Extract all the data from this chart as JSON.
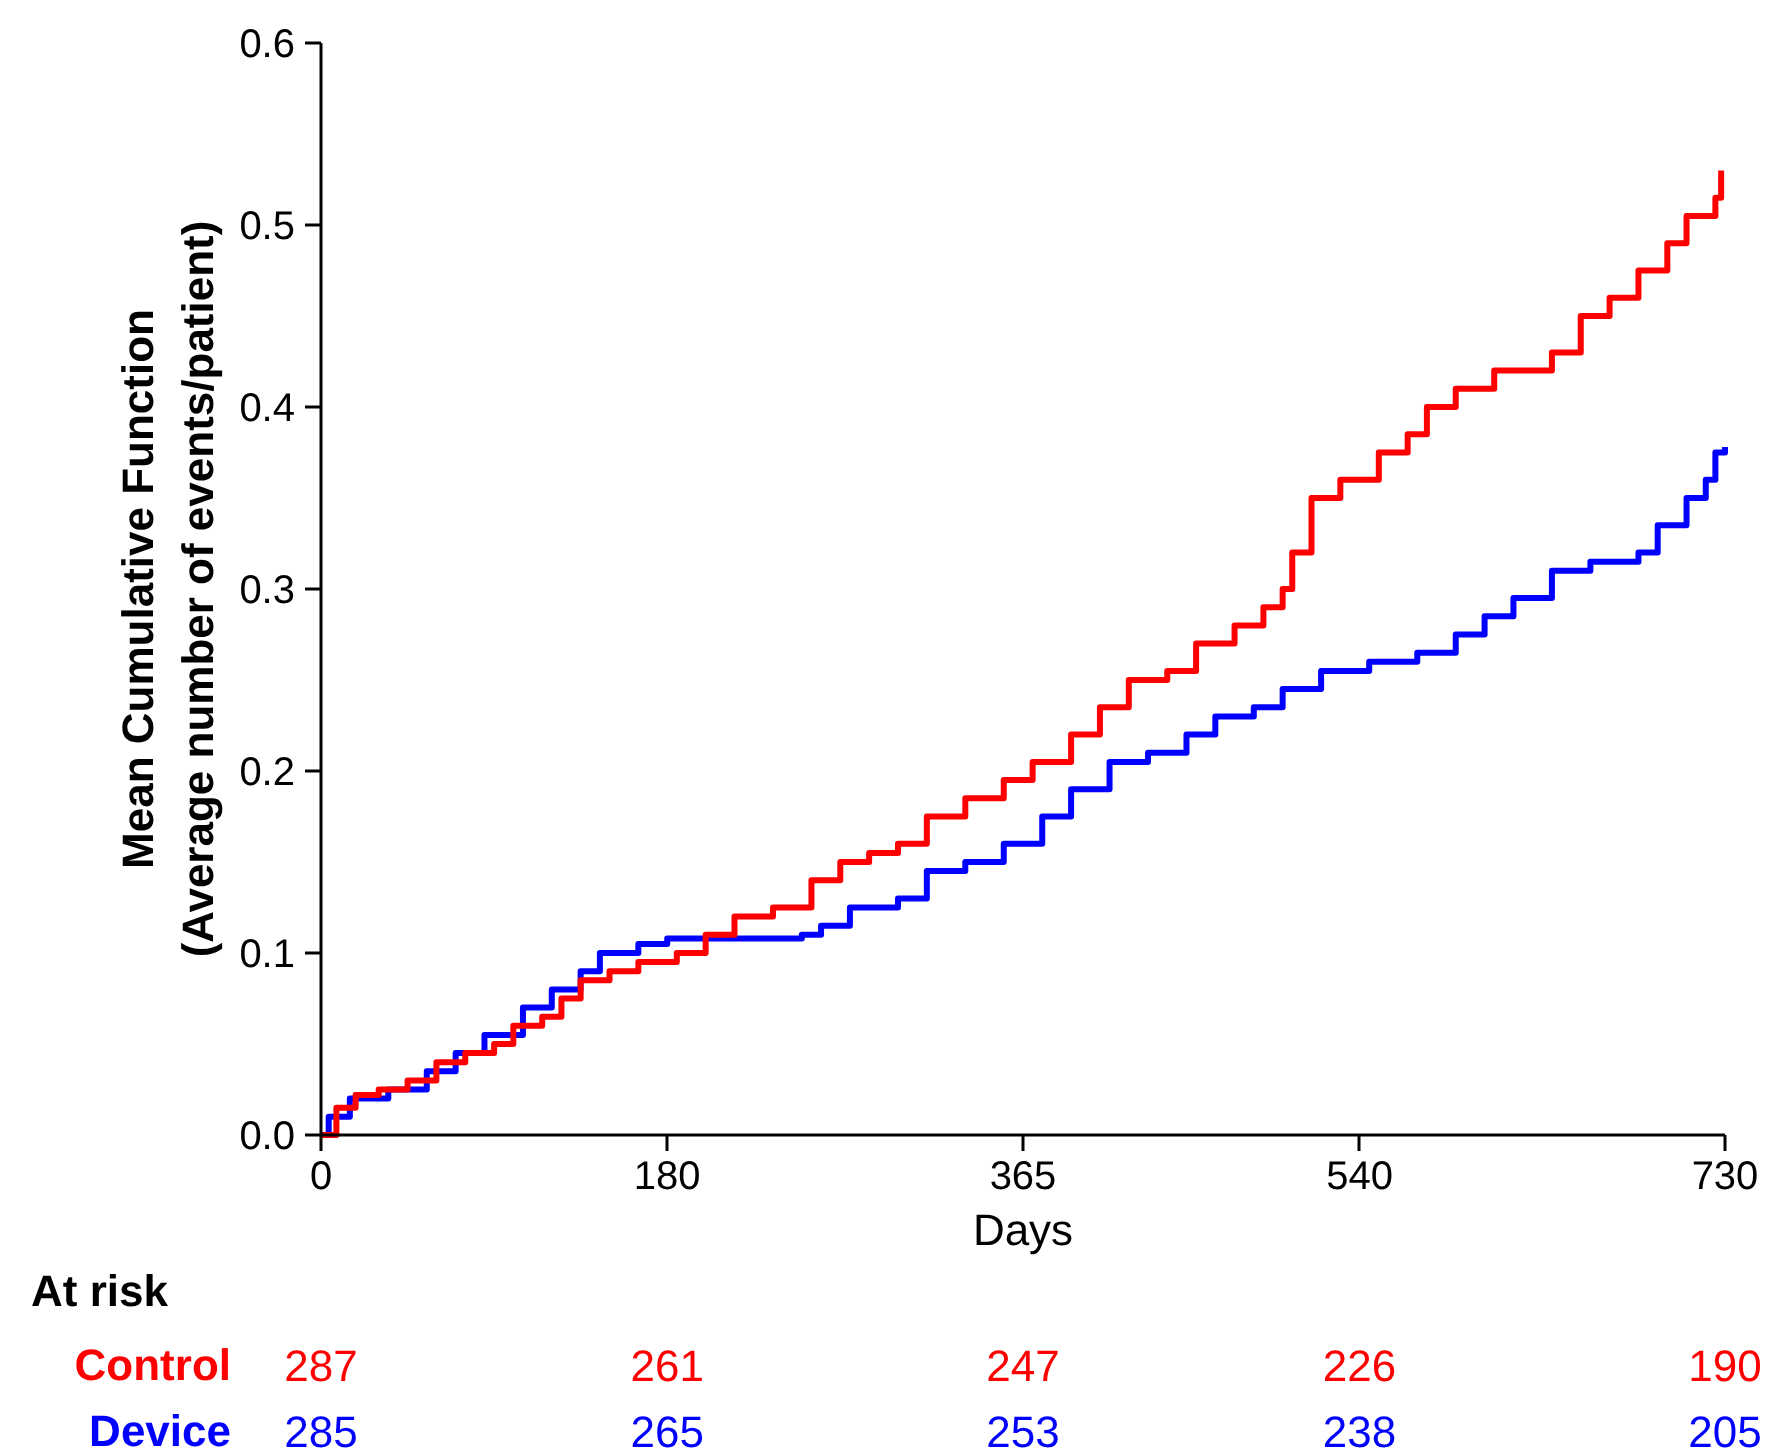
{
  "chart_data": {
    "type": "step",
    "xlabel": "Days",
    "ylabel": "Mean Cumulative Function\n(Average number of events/patient)",
    "xlim": [
      0,
      730
    ],
    "xticks": [
      0,
      180,
      365,
      540,
      730
    ],
    "ylim": [
      0,
      0.6
    ],
    "yticks": [
      {
        "value": 0,
        "label": "0.0"
      },
      0.1,
      0.2,
      0.3,
      0.4,
      0.5,
      0.6
    ],
    "grid": false,
    "legend": false,
    "series": [
      {
        "name": "Control",
        "color": "#ff0000",
        "x": [
          0,
          8,
          18,
          30,
          45,
          60,
          75,
          90,
          100,
          115,
          125,
          135,
          150,
          165,
          185,
          200,
          215,
          235,
          255,
          270,
          285,
          300,
          315,
          335,
          355,
          370,
          390,
          405,
          420,
          440,
          455,
          475,
          490,
          500,
          505,
          515,
          530,
          550,
          565,
          575,
          590,
          610,
          640,
          655,
          670,
          685,
          700,
          710,
          725,
          728
        ],
        "values": [
          0,
          0.015,
          0.022,
          0.025,
          0.03,
          0.04,
          0.045,
          0.05,
          0.06,
          0.065,
          0.075,
          0.085,
          0.09,
          0.095,
          0.1,
          0.11,
          0.12,
          0.125,
          0.14,
          0.15,
          0.155,
          0.16,
          0.175,
          0.185,
          0.195,
          0.205,
          0.22,
          0.235,
          0.25,
          0.255,
          0.27,
          0.28,
          0.29,
          0.3,
          0.32,
          0.35,
          0.36,
          0.375,
          0.385,
          0.4,
          0.41,
          0.42,
          0.43,
          0.45,
          0.46,
          0.475,
          0.49,
          0.505,
          0.515,
          0.53
        ]
      },
      {
        "name": "Device",
        "color": "#0000ff",
        "x": [
          0,
          4,
          15,
          35,
          55,
          70,
          85,
          105,
          120,
          135,
          145,
          165,
          180,
          250,
          260,
          275,
          300,
          315,
          335,
          355,
          375,
          390,
          410,
          430,
          450,
          465,
          485,
          500,
          520,
          545,
          570,
          590,
          605,
          620,
          640,
          660,
          685,
          695,
          710,
          720,
          725,
          730
        ],
        "values": [
          0,
          0.01,
          0.02,
          0.025,
          0.035,
          0.045,
          0.055,
          0.07,
          0.08,
          0.09,
          0.1,
          0.105,
          0.108,
          0.11,
          0.115,
          0.125,
          0.13,
          0.145,
          0.15,
          0.16,
          0.175,
          0.19,
          0.205,
          0.21,
          0.22,
          0.23,
          0.235,
          0.245,
          0.255,
          0.26,
          0.265,
          0.275,
          0.285,
          0.295,
          0.31,
          0.315,
          0.32,
          0.335,
          0.35,
          0.36,
          0.375,
          0.378
        ]
      }
    ],
    "annotations": [
      "At risk",
      "287",
      "261",
      "247",
      "226",
      "190",
      "285",
      "265",
      "253",
      "238",
      "205"
    ]
  }
}
